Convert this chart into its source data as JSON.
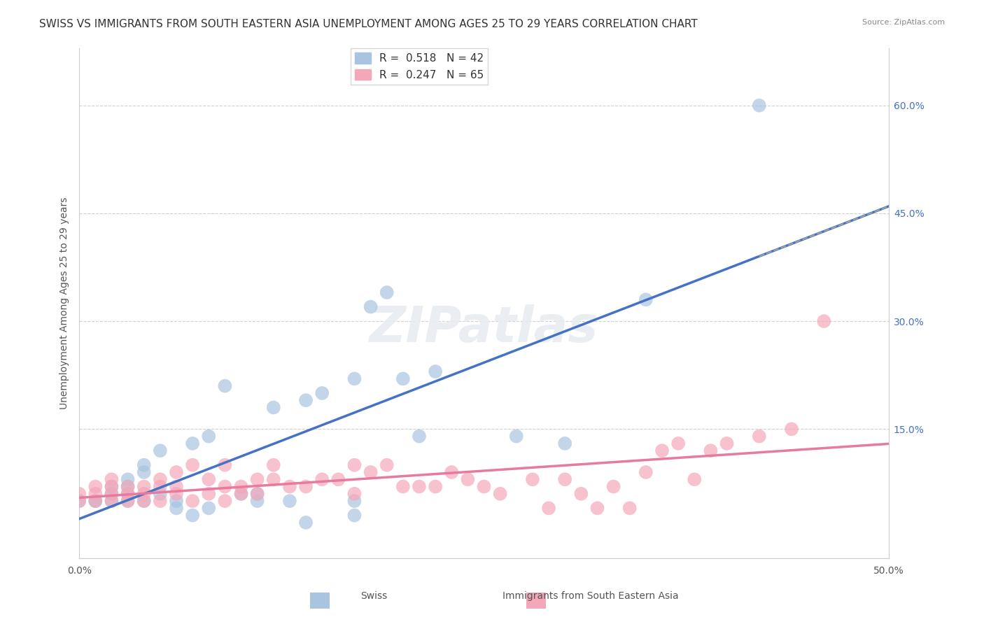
{
  "title": "SWISS VS IMMIGRANTS FROM SOUTH EASTERN ASIA UNEMPLOYMENT AMONG AGES 25 TO 29 YEARS CORRELATION CHART",
  "source": "Source: ZipAtlas.com",
  "xlabel_bottom_left": "0.0%",
  "xlabel_bottom_right": "50.0%",
  "ylabel": "Unemployment Among Ages 25 to 29 years",
  "y_tick_labels": [
    "60.0%",
    "45.0%",
    "30.0%",
    "15.0%"
  ],
  "y_tick_values": [
    0.6,
    0.45,
    0.3,
    0.15
  ],
  "xlim": [
    0.0,
    0.5
  ],
  "ylim": [
    -0.03,
    0.68
  ],
  "blue_R": 0.518,
  "blue_N": 42,
  "pink_R": 0.247,
  "pink_N": 65,
  "blue_color": "#a8c4e0",
  "blue_line_color": "#4472c4",
  "pink_color": "#f4a7b9",
  "pink_line_color": "#e87aa0",
  "swiss_label": "Swiss",
  "immigrant_label": "Immigrants from South Eastern Asia",
  "watermark": "ZIPatlas",
  "blue_scatter_x": [
    0.0,
    0.01,
    0.01,
    0.02,
    0.02,
    0.02,
    0.03,
    0.03,
    0.03,
    0.03,
    0.04,
    0.04,
    0.04,
    0.05,
    0.05,
    0.06,
    0.06,
    0.07,
    0.07,
    0.08,
    0.08,
    0.09,
    0.1,
    0.11,
    0.11,
    0.12,
    0.13,
    0.14,
    0.14,
    0.15,
    0.17,
    0.17,
    0.17,
    0.18,
    0.19,
    0.2,
    0.21,
    0.22,
    0.27,
    0.3,
    0.35,
    0.42
  ],
  "blue_scatter_y": [
    0.05,
    0.05,
    0.05,
    0.05,
    0.06,
    0.07,
    0.05,
    0.06,
    0.07,
    0.08,
    0.05,
    0.09,
    0.1,
    0.06,
    0.12,
    0.04,
    0.05,
    0.03,
    0.13,
    0.04,
    0.14,
    0.21,
    0.06,
    0.05,
    0.06,
    0.18,
    0.05,
    0.02,
    0.19,
    0.2,
    0.03,
    0.22,
    0.05,
    0.32,
    0.34,
    0.22,
    0.14,
    0.23,
    0.14,
    0.13,
    0.33,
    0.6
  ],
  "pink_scatter_x": [
    0.0,
    0.0,
    0.01,
    0.01,
    0.01,
    0.02,
    0.02,
    0.02,
    0.02,
    0.03,
    0.03,
    0.03,
    0.04,
    0.04,
    0.04,
    0.05,
    0.05,
    0.05,
    0.06,
    0.06,
    0.06,
    0.07,
    0.07,
    0.08,
    0.08,
    0.09,
    0.09,
    0.09,
    0.1,
    0.1,
    0.11,
    0.11,
    0.12,
    0.12,
    0.13,
    0.14,
    0.15,
    0.16,
    0.17,
    0.17,
    0.18,
    0.19,
    0.2,
    0.21,
    0.22,
    0.23,
    0.24,
    0.25,
    0.26,
    0.28,
    0.29,
    0.3,
    0.31,
    0.32,
    0.33,
    0.34,
    0.35,
    0.36,
    0.37,
    0.38,
    0.39,
    0.4,
    0.42,
    0.44,
    0.46
  ],
  "pink_scatter_y": [
    0.05,
    0.06,
    0.05,
    0.06,
    0.07,
    0.05,
    0.06,
    0.07,
    0.08,
    0.05,
    0.06,
    0.07,
    0.05,
    0.06,
    0.07,
    0.05,
    0.07,
    0.08,
    0.06,
    0.07,
    0.09,
    0.05,
    0.1,
    0.06,
    0.08,
    0.05,
    0.07,
    0.1,
    0.06,
    0.07,
    0.06,
    0.08,
    0.08,
    0.1,
    0.07,
    0.07,
    0.08,
    0.08,
    0.06,
    0.1,
    0.09,
    0.1,
    0.07,
    0.07,
    0.07,
    0.09,
    0.08,
    0.07,
    0.06,
    0.08,
    0.04,
    0.08,
    0.06,
    0.04,
    0.07,
    0.04,
    0.09,
    0.12,
    0.13,
    0.08,
    0.12,
    0.13,
    0.14,
    0.15,
    0.3
  ],
  "grid_color": "#d0d0d0",
  "background_color": "#ffffff",
  "title_fontsize": 11,
  "axis_label_fontsize": 10,
  "tick_fontsize": 10,
  "legend_R_color": "#4472c4",
  "legend_N_color": "#4472c4"
}
